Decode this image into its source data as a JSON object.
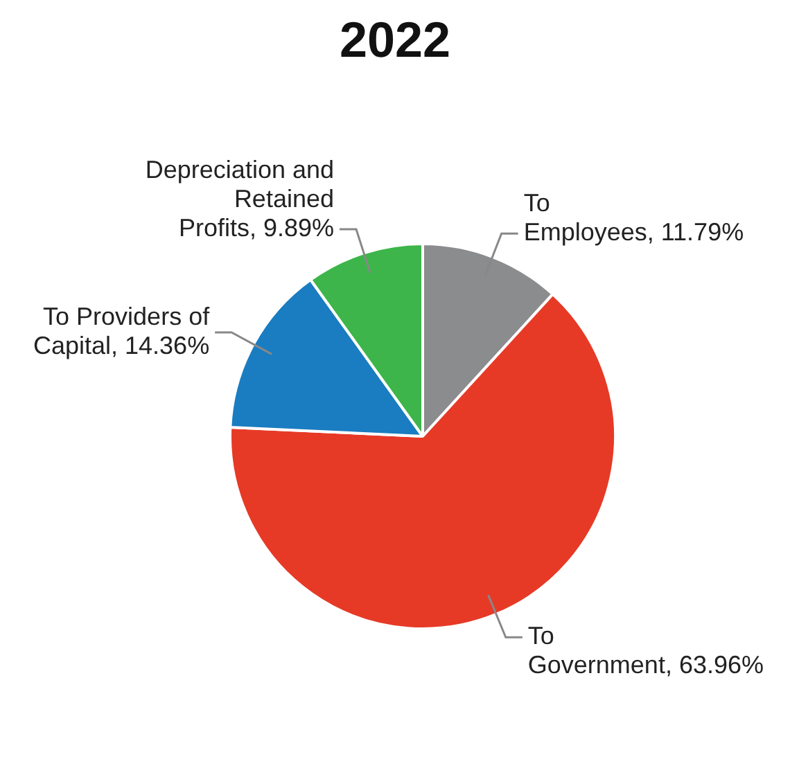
{
  "chart_data": {
    "type": "pie",
    "title": "2022",
    "categories": [
      "To Employees",
      "To Government",
      "To Providers of Capital",
      "Depreciation and Retained Profits"
    ],
    "values": [
      11.79,
      63.96,
      14.36,
      9.89
    ],
    "value_labels": [
      "11.79%",
      "63.96%",
      "14.36%",
      "9.89%"
    ],
    "colors": [
      "#8a8c8e",
      "#e63a27",
      "#1a7cc1",
      "#3db54a"
    ],
    "legend": false
  }
}
